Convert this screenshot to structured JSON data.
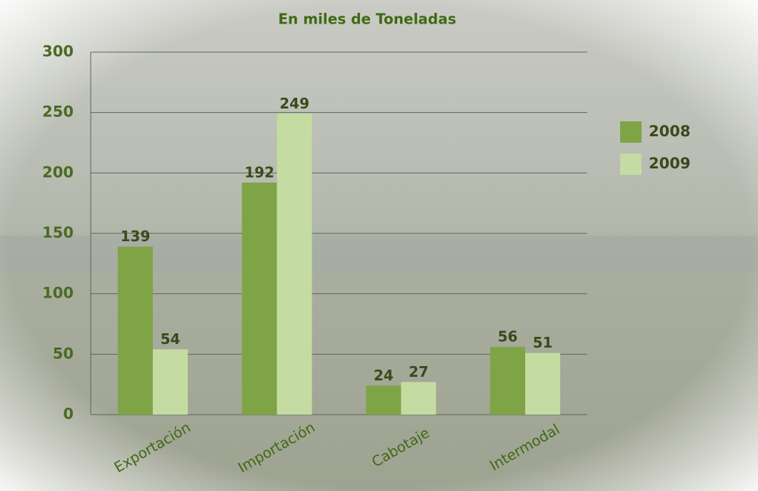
{
  "chart_data": {
    "type": "bar",
    "title": "En miles de Toneladas",
    "categories": [
      "Exportación",
      "Importación",
      "Cabotaje",
      "Intermodal"
    ],
    "series": [
      {
        "name": "2008",
        "color": "#7ea446",
        "values": [
          139,
          192,
          24,
          56
        ]
      },
      {
        "name": "2009",
        "color": "#c4dba2",
        "values": [
          54,
          249,
          27,
          51
        ]
      }
    ],
    "ylim": [
      0,
      300
    ],
    "yticks": [
      0,
      50,
      100,
      150,
      200,
      250,
      300
    ],
    "grid": true,
    "legend": "right"
  }
}
